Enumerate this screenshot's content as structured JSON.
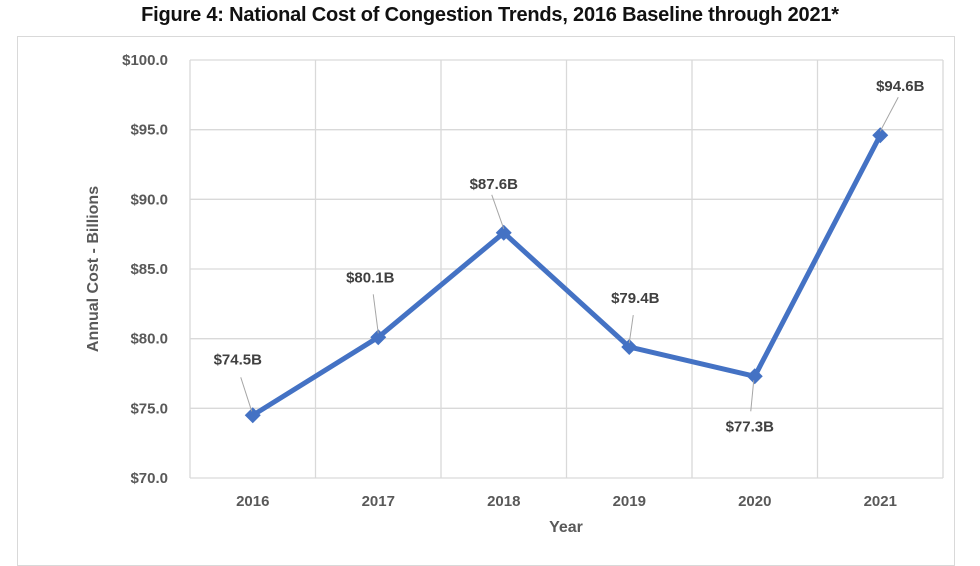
{
  "chart_data": {
    "type": "line",
    "title": "Figure 4: National Cost of Congestion Trends, 2016 Baseline through 2021*",
    "xlabel": "Year",
    "ylabel": "Annual Cost - Billions",
    "categories": [
      "2016",
      "2017",
      "2018",
      "2019",
      "2020",
      "2021"
    ],
    "series": [
      {
        "name": "National Cost of Congestion",
        "values": [
          74.5,
          80.1,
          87.6,
          79.4,
          77.3,
          94.6
        ],
        "data_labels": [
          "$74.5B",
          "$80.1B",
          "$87.6B",
          "$79.4B",
          "$77.3B",
          "$94.6B"
        ],
        "label_positions": [
          "above-left",
          "above",
          "above",
          "above",
          "below",
          "above"
        ],
        "color": "#4472C4",
        "marker": "diamond"
      }
    ],
    "ylim": [
      70,
      100
    ],
    "yticks": [
      70,
      75,
      80,
      85,
      90,
      95,
      100
    ],
    "ytick_labels": [
      "$70.0",
      "$75.0",
      "$80.0",
      "$85.0",
      "$90.0",
      "$95.0",
      "$100.0"
    ],
    "grid": true,
    "legend": "none"
  }
}
